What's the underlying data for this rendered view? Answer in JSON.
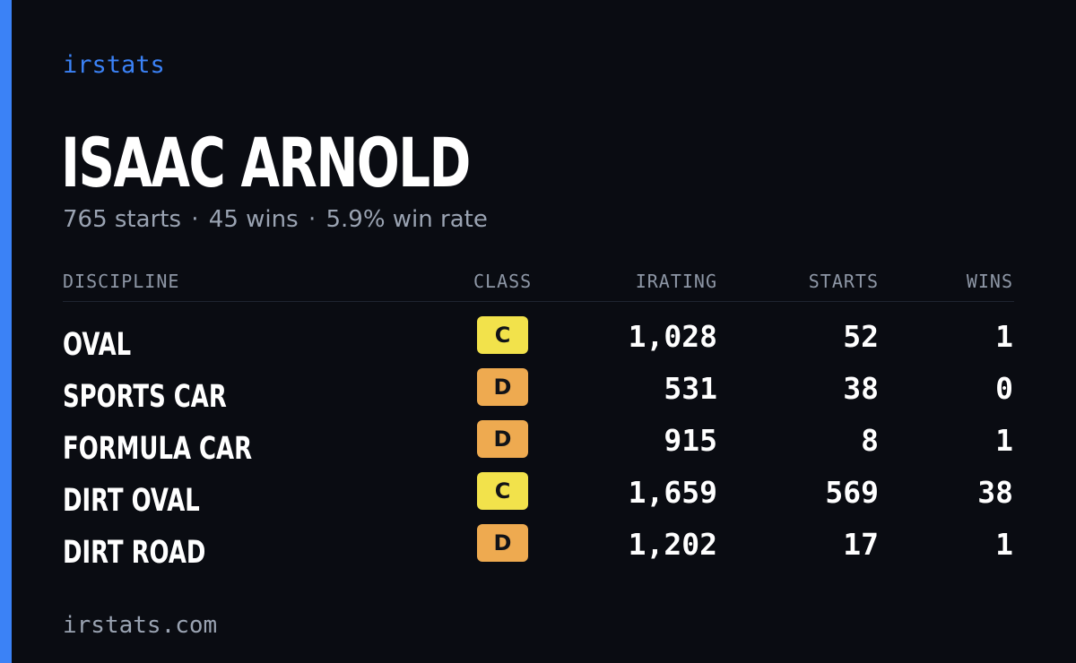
{
  "brand": "irstats",
  "driver": {
    "name": "ISAAC ARNOLD",
    "summary": {
      "starts": "765 starts",
      "wins": "45 wins",
      "win_rate": "5.9% win rate",
      "separator": "·"
    }
  },
  "table": {
    "headers": {
      "discipline": "DISCIPLINE",
      "class": "CLASS",
      "irating": "IRATING",
      "starts": "STARTS",
      "wins": "WINS"
    },
    "rows": [
      {
        "discipline": "OVAL",
        "class": "C",
        "class_color": "#f2e24b",
        "irating": "1,028",
        "starts": "52",
        "wins": "1"
      },
      {
        "discipline": "SPORTS CAR",
        "class": "D",
        "class_color": "#eeaa50",
        "irating": "531",
        "starts": "38",
        "wins": "0"
      },
      {
        "discipline": "FORMULA CAR",
        "class": "D",
        "class_color": "#eeaa50",
        "irating": "915",
        "starts": "8",
        "wins": "1"
      },
      {
        "discipline": "DIRT OVAL",
        "class": "C",
        "class_color": "#f2e24b",
        "irating": "1,659",
        "starts": "569",
        "wins": "38"
      },
      {
        "discipline": "DIRT ROAD",
        "class": "D",
        "class_color": "#eeaa50",
        "irating": "1,202",
        "starts": "17",
        "wins": "1"
      }
    ]
  },
  "footer": {
    "url": "irstats.com"
  },
  "colors": {
    "accent": "#3b82f6",
    "background": "#0a0c12"
  }
}
